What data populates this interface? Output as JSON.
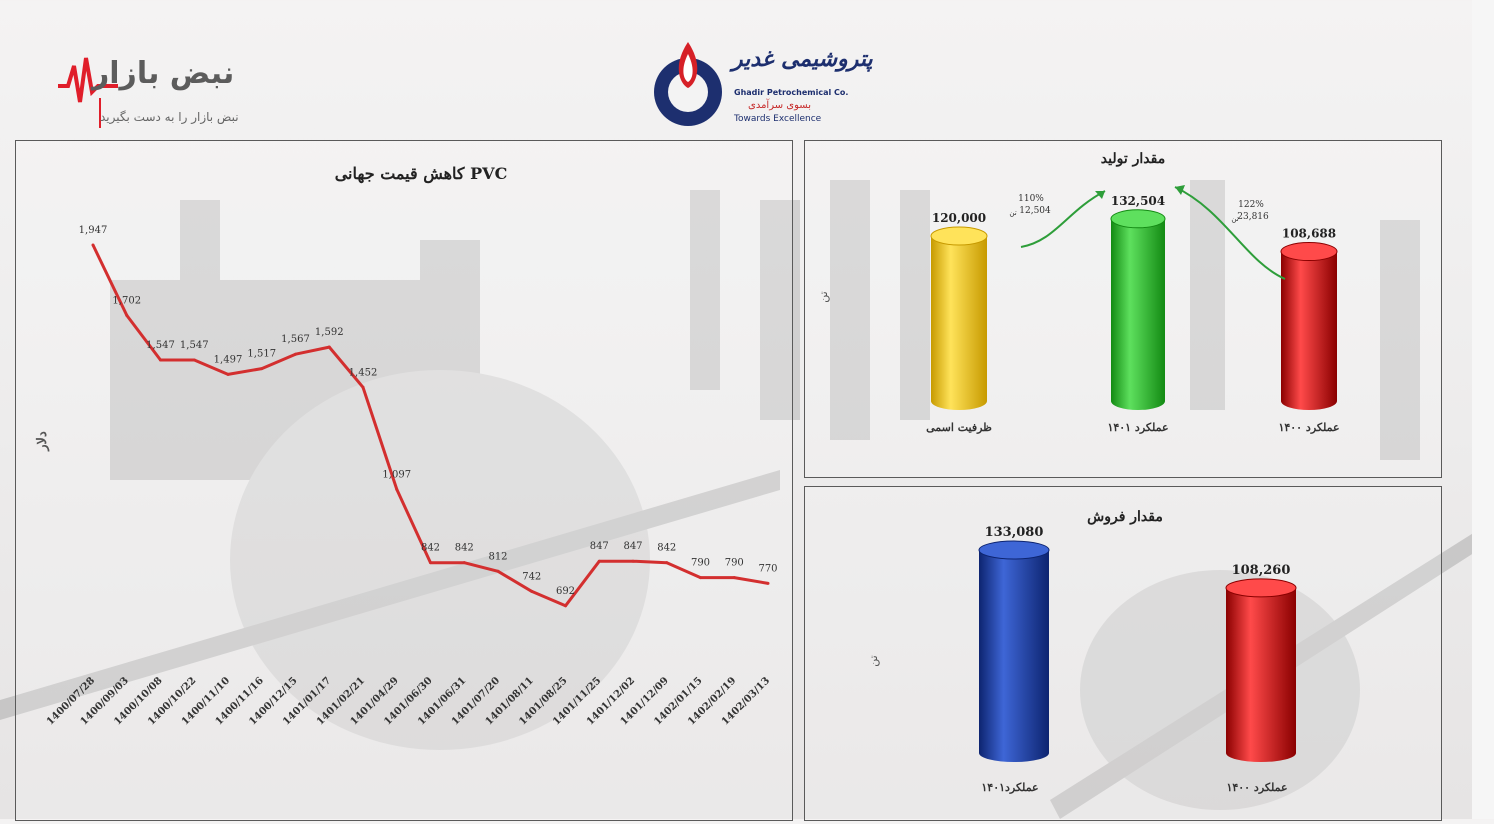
{
  "logo_left": {
    "brand": "نبض بازار",
    "tagline": "نبض بازار را به دست بگیرید"
  },
  "logo_center": {
    "name_fa": "پتروشیمی غدیر",
    "name_en": "Ghadir Petrochemical Co.",
    "slogan_fa": "بسوی سرآمدی",
    "slogan_en": "Towards Excellence"
  },
  "colors": {
    "line": "#d32f2f",
    "yellow": "#f5c400",
    "green": "#22b022",
    "red": "#c81010",
    "blue": "#1e40a0"
  },
  "chart_data": [
    {
      "type": "line",
      "title": "کاهش قیمت جهانی PVC",
      "ylabel": "دلار",
      "categories": [
        "1400/07/28",
        "1400/09/03",
        "1400/10/08",
        "1400/10/22",
        "1400/11/10",
        "1400/11/16",
        "1400/12/15",
        "1401/01/17",
        "1401/02/21",
        "1401/04/29",
        "1401/06/30",
        "1401/06/31",
        "1401/07/20",
        "1401/08/11",
        "1401/08/25",
        "1401/11/25",
        "1401/12/02",
        "1401/12/09",
        "1402/01/15",
        "1402/02/19",
        "1402/03/13"
      ],
      "values": [
        1947,
        1702,
        1547,
        1547,
        1497,
        1517,
        1567,
        1592,
        1452,
        1097,
        842,
        842,
        812,
        742,
        692,
        847,
        847,
        842,
        790,
        790,
        770
      ],
      "data_labels": [
        "1,947",
        "1,702",
        "1,547",
        "1,547",
        "1,497",
        "1,517",
        "1,567",
        "1,592",
        "1,452",
        "1,097",
        "842",
        "842",
        "812",
        "742",
        "692",
        "847",
        "847",
        "842",
        "790",
        "790",
        "770"
      ],
      "ylim": [
        500,
        2100
      ],
      "grid": false
    },
    {
      "type": "bar",
      "title": "مقدار تولید",
      "ylabel": "تن",
      "categories": [
        "ظرفیت اسمی",
        "عملکرد ۱۴۰۱",
        "عملکرد ۱۴۰۰"
      ],
      "values": [
        120000,
        132504,
        108688
      ],
      "data_labels": [
        "120,000",
        "132,504",
        "108,688"
      ],
      "bar_colors": [
        "#f5c400",
        "#22b022",
        "#c81010"
      ],
      "annotations": [
        {
          "percent": "110%",
          "amount": "12,504",
          "unit": "تن"
        },
        {
          "percent": "122%",
          "amount": "23,816",
          "unit": "تن"
        }
      ],
      "ylim": [
        0,
        160000
      ]
    },
    {
      "type": "bar",
      "title": "مقدار فروش",
      "ylabel": "تن",
      "categories": [
        "عملکرد۱۴۰۱",
        "عملکرد ۱۴۰۰"
      ],
      "values": [
        133080,
        108260
      ],
      "data_labels": [
        "133,080",
        "108,260"
      ],
      "bar_colors": [
        "#1e40a0",
        "#c81010"
      ],
      "ylim": [
        0,
        160000
      ]
    }
  ]
}
